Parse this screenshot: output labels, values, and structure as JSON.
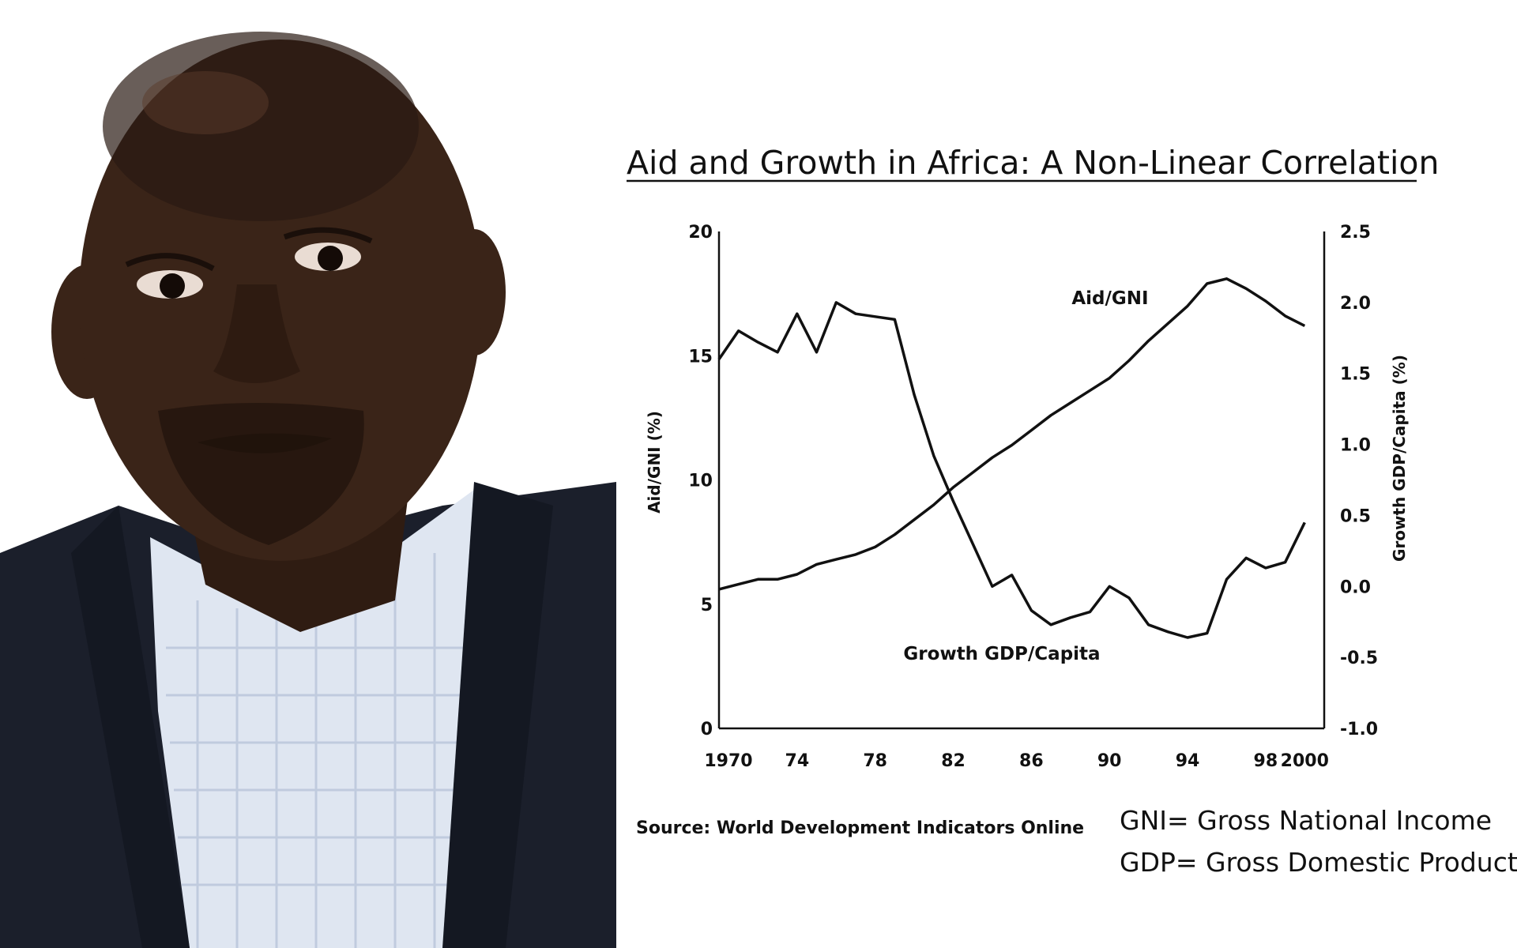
{
  "chart_data": {
    "type": "line",
    "title": "Aid and Growth in Africa: A Non-Linear Correlation",
    "xlabel": "",
    "ylabel": "Aid/GNI (%)",
    "ylabel_right": "Growth GDP/Capita (%)",
    "x_ticks": [
      "1970",
      "74",
      "78",
      "82",
      "86",
      "90",
      "94",
      "98",
      "2000"
    ],
    "x_tick_values": [
      1970,
      1974,
      1978,
      1982,
      1986,
      1990,
      1994,
      1998,
      2000
    ],
    "xlim": [
      1970,
      2001
    ],
    "ylim": [
      0,
      20
    ],
    "ylim_right": [
      -1.0,
      2.5
    ],
    "y_ticks": [
      "0",
      "5",
      "10",
      "15",
      "20"
    ],
    "y_tick_values": [
      0,
      5,
      10,
      15,
      20
    ],
    "y_right_ticks": [
      "-1.0",
      "-0.5",
      "0.0",
      "0.5",
      "1.0",
      "1.5",
      "2.0",
      "2.5"
    ],
    "y_right_tick_values": [
      -1.0,
      -0.5,
      0.0,
      0.5,
      1.0,
      1.5,
      2.0,
      2.5
    ],
    "grid": false,
    "series": [
      {
        "name": "Aid/GNI",
        "axis": "left",
        "x": [
          1970,
          1971,
          1972,
          1973,
          1974,
          1975,
          1976,
          1977,
          1978,
          1979,
          1980,
          1981,
          1982,
          1983,
          1984,
          1985,
          1986,
          1987,
          1988,
          1989,
          1990,
          1991,
          1992,
          1993,
          1994,
          1995,
          1996,
          1997,
          1998,
          1999,
          2000
        ],
        "y": [
          5.6,
          5.8,
          6.0,
          6.0,
          6.2,
          6.6,
          6.8,
          7.0,
          7.3,
          7.8,
          8.4,
          9.0,
          9.7,
          10.3,
          10.9,
          11.4,
          12.0,
          12.6,
          13.1,
          13.6,
          14.1,
          14.8,
          15.6,
          16.3,
          17.0,
          17.9,
          18.1,
          17.7,
          17.2,
          16.6,
          16.2
        ]
      },
      {
        "name": "Growth GDP/Capita",
        "axis": "right",
        "x": [
          1970,
          1971,
          1972,
          1973,
          1974,
          1975,
          1976,
          1977,
          1978,
          1979,
          1980,
          1981,
          1982,
          1983,
          1984,
          1985,
          1986,
          1987,
          1988,
          1989,
          1990,
          1991,
          1992,
          1993,
          1994,
          1995,
          1996,
          1997,
          1998,
          1999,
          2000
        ],
        "y": [
          1.6,
          1.8,
          1.72,
          1.65,
          1.92,
          1.65,
          2.0,
          1.92,
          1.9,
          1.88,
          1.35,
          0.92,
          0.6,
          0.3,
          0.0,
          0.08,
          -0.17,
          -0.27,
          -0.22,
          -0.18,
          0.0,
          -0.08,
          -0.27,
          -0.32,
          -0.36,
          -0.33,
          0.05,
          0.2,
          0.13,
          0.17,
          0.45
        ]
      }
    ],
    "annotations": [
      {
        "text": "Aid/GNI",
        "near_series": "Aid/GNI"
      },
      {
        "text": "Growth GDP/Capita",
        "near_series": "Growth GDP/Capita"
      }
    ],
    "source": "Source: World Development Indicators Online"
  },
  "definitions": [
    "GNI= Gross National Income",
    "GDP= Gross Domestic Product"
  ],
  "colors": {
    "ink": "#111111",
    "background": "#ffffff",
    "jacket": "#1b1f2b",
    "shirt": "#dfe6f1",
    "skin": "#3a2418"
  }
}
